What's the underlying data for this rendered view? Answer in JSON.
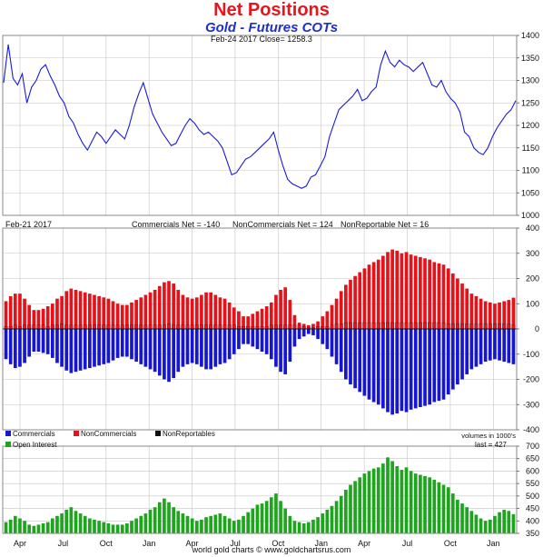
{
  "title": "Net Positions",
  "subtitle": "Gold - Futures COTs",
  "footer": "world gold charts © www.goldchartsrus.com",
  "colors": {
    "price": "#1a1add",
    "commercials": "#1515d2",
    "noncommercials": "#e5121a",
    "nonreportables": "#111111",
    "open_interest": "#1ea51e",
    "grid": "#c4c4c4",
    "frame": "#888888"
  },
  "x_tick_labels": [
    "Apr",
    "Jul",
    "Oct",
    "Jan",
    "Apr",
    "Jul",
    "Oct",
    "Jan",
    "Apr",
    "Jul",
    "Oct",
    "Jan"
  ],
  "chart_data": [
    {
      "type": "line",
      "info_text": "Feb-24  2017   Close= 1258.3",
      "ylim": [
        1000,
        1400
      ],
      "y_ticks": [
        1000,
        1050,
        1100,
        1150,
        1200,
        1250,
        1300,
        1350,
        1400
      ],
      "series": [
        {
          "values": [
            1295,
            1380,
            1305,
            1290,
            1315,
            1250,
            1285,
            1300,
            1325,
            1335,
            1310,
            1290,
            1265,
            1250,
            1220,
            1205,
            1180,
            1160,
            1145,
            1165,
            1185,
            1175,
            1160,
            1175,
            1190,
            1180,
            1170,
            1200,
            1240,
            1270,
            1295,
            1260,
            1225,
            1205,
            1185,
            1170,
            1155,
            1160,
            1180,
            1200,
            1215,
            1205,
            1190,
            1180,
            1185,
            1175,
            1165,
            1150,
            1120,
            1090,
            1095,
            1110,
            1125,
            1130,
            1140,
            1150,
            1160,
            1170,
            1185,
            1145,
            1110,
            1080,
            1070,
            1065,
            1060,
            1065,
            1085,
            1090,
            1110,
            1130,
            1175,
            1205,
            1235,
            1245,
            1255,
            1265,
            1280,
            1255,
            1260,
            1275,
            1285,
            1335,
            1365,
            1340,
            1330,
            1345,
            1335,
            1330,
            1320,
            1330,
            1340,
            1315,
            1290,
            1285,
            1300,
            1275,
            1260,
            1250,
            1230,
            1185,
            1175,
            1150,
            1140,
            1135,
            1150,
            1175,
            1195,
            1210,
            1225,
            1235,
            1255
          ]
        }
      ]
    },
    {
      "type": "bar",
      "info_text": "Feb-21  2017",
      "ylim": [
        -400,
        400
      ],
      "y_ticks": [
        -400,
        -300,
        -200,
        -100,
        0,
        100,
        200,
        300,
        400
      ],
      "header_labels": [
        "Commercials Net = -140",
        "NonCommercials Net = 124",
        "NonReportable Net = 16"
      ],
      "legend": [
        "Commercials",
        "NonCommercials",
        "NonReportables"
      ],
      "units": "volumes in 1000's",
      "series": [
        {
          "name": "Commercials",
          "values": [
            -120,
            -140,
            -155,
            -150,
            -135,
            -110,
            -90,
            -90,
            -95,
            -100,
            -115,
            -135,
            -150,
            -165,
            -175,
            -170,
            -165,
            -160,
            -155,
            -150,
            -145,
            -140,
            -135,
            -125,
            -115,
            -110,
            -110,
            -120,
            -130,
            -140,
            -150,
            -160,
            -170,
            -185,
            -200,
            -210,
            -195,
            -170,
            -150,
            -140,
            -135,
            -140,
            -150,
            -160,
            -160,
            -150,
            -140,
            -135,
            -120,
            -100,
            -80,
            -60,
            -60,
            -70,
            -80,
            -90,
            -100,
            -120,
            -150,
            -170,
            -180,
            -130,
            -70,
            -40,
            -30,
            -20,
            -25,
            -40,
            -60,
            -80,
            -110,
            -140,
            -170,
            -200,
            -220,
            -235,
            -250,
            -265,
            -280,
            -290,
            -300,
            -315,
            -330,
            -340,
            -335,
            -325,
            -330,
            -320,
            -315,
            -310,
            -305,
            -300,
            -290,
            -285,
            -280,
            -260,
            -240,
            -220,
            -200,
            -180,
            -160,
            -150,
            -140,
            -130,
            -125,
            -120,
            -125,
            -130,
            -135,
            -140
          ]
        },
        {
          "name": "NonCommercials",
          "values": [
            110,
            130,
            140,
            140,
            120,
            95,
            75,
            75,
            80,
            90,
            100,
            120,
            130,
            150,
            160,
            155,
            150,
            145,
            140,
            135,
            130,
            125,
            120,
            110,
            100,
            95,
            95,
            105,
            115,
            125,
            135,
            145,
            155,
            170,
            185,
            190,
            180,
            155,
            135,
            125,
            120,
            125,
            135,
            145,
            145,
            135,
            125,
            120,
            105,
            85,
            70,
            50,
            50,
            60,
            70,
            80,
            90,
            105,
            135,
            155,
            165,
            115,
            55,
            25,
            20,
            15,
            20,
            30,
            50,
            70,
            95,
            120,
            150,
            175,
            195,
            210,
            225,
            240,
            255,
            265,
            275,
            290,
            305,
            315,
            310,
            300,
            305,
            295,
            290,
            285,
            280,
            275,
            265,
            260,
            255,
            240,
            220,
            200,
            180,
            160,
            140,
            130,
            120,
            110,
            105,
            100,
            105,
            110,
            115,
            124
          ]
        },
        {
          "name": "NonReportables",
          "values": [
            10,
            10,
            15,
            10,
            15,
            15,
            15,
            15,
            15,
            10,
            15,
            15,
            20,
            15,
            15,
            15,
            15,
            15,
            15,
            15,
            15,
            15,
            15,
            15,
            15,
            15,
            15,
            15,
            15,
            15,
            15,
            15,
            15,
            15,
            15,
            20,
            15,
            15,
            15,
            15,
            15,
            15,
            15,
            15,
            15,
            15,
            15,
            15,
            15,
            15,
            10,
            10,
            10,
            10,
            10,
            10,
            10,
            15,
            15,
            15,
            15,
            15,
            15,
            15,
            10,
            5,
            5,
            10,
            10,
            10,
            15,
            20,
            20,
            25,
            25,
            25,
            25,
            25,
            25,
            25,
            25,
            25,
            25,
            25,
            25,
            25,
            25,
            25,
            25,
            25,
            25,
            25,
            25,
            25,
            25,
            20,
            20,
            20,
            20,
            20,
            20,
            20,
            20,
            20,
            20,
            20,
            20,
            20,
            20,
            16
          ]
        }
      ]
    },
    {
      "type": "bar",
      "legend": [
        "Open Interest"
      ],
      "info_text": "last = 427",
      "ylim": [
        350,
        700
      ],
      "y_ticks": [
        350,
        400,
        450,
        500,
        550,
        600,
        650,
        700
      ],
      "series": [
        {
          "name": "Open Interest",
          "values": [
            395,
            405,
            420,
            410,
            400,
            385,
            380,
            385,
            390,
            395,
            410,
            420,
            430,
            445,
            455,
            440,
            430,
            420,
            410,
            405,
            400,
            395,
            390,
            385,
            385,
            385,
            390,
            400,
            410,
            420,
            430,
            445,
            455,
            475,
            490,
            475,
            455,
            440,
            430,
            420,
            410,
            400,
            405,
            415,
            420,
            425,
            430,
            420,
            410,
            400,
            405,
            420,
            435,
            450,
            465,
            470,
            480,
            495,
            510,
            480,
            450,
            420,
            400,
            395,
            390,
            395,
            405,
            415,
            430,
            445,
            460,
            480,
            500,
            525,
            545,
            560,
            575,
            590,
            600,
            610,
            615,
            630,
            655,
            640,
            620,
            605,
            615,
            600,
            590,
            585,
            580,
            575,
            565,
            555,
            545,
            535,
            510,
            485,
            470,
            455,
            440,
            425,
            410,
            400,
            405,
            420,
            435,
            445,
            440,
            427
          ]
        }
      ]
    }
  ]
}
